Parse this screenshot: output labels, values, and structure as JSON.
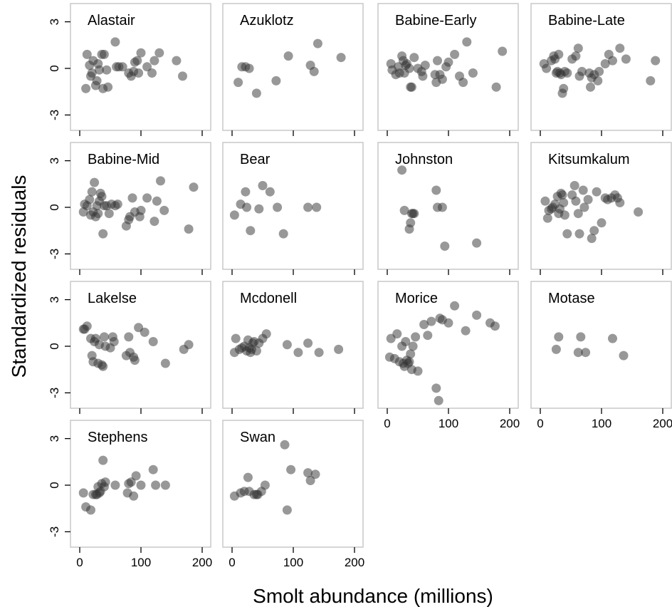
{
  "chart_data": {
    "type": "scatter",
    "xlabel": "Smolt abundance (millions)",
    "ylabel": "Standardized residuals",
    "xlim": [
      0,
      200
    ],
    "ylim": [
      -3.9,
      3.9
    ],
    "xticks": [
      0,
      100,
      200
    ],
    "yticks": [
      -3,
      0,
      3
    ],
    "grid": false,
    "panels": [
      {
        "name": "Alastair",
        "x": [
          10,
          12,
          16,
          18,
          20,
          22,
          26,
          28,
          30,
          32,
          36,
          38,
          40,
          44,
          46,
          58,
          60,
          64,
          70,
          80,
          84,
          88,
          90,
          94,
          96,
          100,
          110,
          118,
          122,
          130,
          158,
          168
        ],
        "y": [
          -1.3,
          0.9,
          0.2,
          -0.5,
          -0.3,
          0.5,
          -1.1,
          -0.8,
          0.3,
          -0.1,
          0.9,
          -1.3,
          0.9,
          -0.1,
          -1.2,
          1.7,
          0.1,
          0.1,
          0.1,
          -0.3,
          -0.5,
          -0.2,
          0.4,
          0.5,
          -0.3,
          1.0,
          0.1,
          -0.3,
          0.5,
          1.0,
          0.5,
          -0.5
        ]
      },
      {
        "name": "Azuklotz",
        "x": [
          10,
          16,
          22,
          28,
          40,
          72,
          92,
          128,
          134,
          140,
          178
        ],
        "y": [
          -0.9,
          0.1,
          0.1,
          0.0,
          -1.6,
          -0.8,
          0.8,
          0.2,
          -0.2,
          1.6,
          0.7
        ]
      },
      {
        "name": "Babine-Early",
        "x": [
          6,
          8,
          14,
          18,
          20,
          24,
          26,
          28,
          30,
          32,
          36,
          38,
          40,
          44,
          50,
          56,
          58,
          62,
          78,
          80,
          82,
          86,
          90,
          96,
          100,
          110,
          118,
          124,
          130,
          140,
          178,
          188
        ],
        "y": [
          0.3,
          -0.1,
          -0.4,
          0.1,
          -0.3,
          0.8,
          0.5,
          -0.3,
          0.2,
          0.3,
          0.0,
          -1.2,
          -1.2,
          0.7,
          0.0,
          -0.2,
          -0.5,
          0.2,
          -0.4,
          -0.9,
          0.5,
          -0.4,
          -0.7,
          0.1,
          0.4,
          0.9,
          -0.5,
          -0.9,
          1.7,
          -0.3,
          -1.2,
          1.1
        ]
      },
      {
        "name": "Babine-Late",
        "x": [
          6,
          10,
          18,
          22,
          24,
          26,
          28,
          30,
          32,
          34,
          36,
          38,
          40,
          44,
          52,
          58,
          62,
          64,
          68,
          80,
          82,
          84,
          88,
          94,
          96,
          106,
          112,
          118,
          130,
          140,
          180,
          188
        ],
        "y": [
          0.3,
          0.0,
          0.5,
          0.8,
          0.6,
          -0.3,
          -0.2,
          0.9,
          -0.3,
          -0.4,
          -1.6,
          -1.3,
          -0.2,
          -0.3,
          0.6,
          0.8,
          1.3,
          -0.5,
          -0.2,
          -0.3,
          -1.2,
          -0.6,
          -0.4,
          -0.8,
          -0.2,
          0.3,
          0.9,
          0.5,
          1.3,
          0.6,
          -0.8,
          0.5
        ]
      },
      {
        "name": "Babine-Mid",
        "x": [
          6,
          8,
          12,
          16,
          18,
          20,
          22,
          24,
          26,
          28,
          30,
          32,
          34,
          36,
          38,
          40,
          44,
          48,
          52,
          58,
          62,
          76,
          80,
          82,
          86,
          90,
          98,
          100,
          110,
          122,
          126,
          132,
          138,
          178,
          186
        ],
        "y": [
          -0.3,
          0.2,
          0.1,
          0.5,
          -0.5,
          1.0,
          -0.3,
          1.6,
          -0.6,
          0.1,
          -0.4,
          0.4,
          0.9,
          0.7,
          -1.7,
          0.1,
          0.1,
          -0.4,
          0.2,
          0.1,
          0.2,
          -1.2,
          -0.8,
          -0.6,
          0.6,
          -0.3,
          -0.6,
          -0.2,
          0.6,
          -0.9,
          0.4,
          1.7,
          -0.2,
          -1.4,
          1.3
        ]
      },
      {
        "name": "Bear",
        "x": [
          4,
          14,
          22,
          24,
          30,
          44,
          50,
          62,
          74,
          84,
          124,
          138
        ],
        "y": [
          -0.5,
          0.2,
          1.0,
          0.0,
          -1.5,
          -0.1,
          1.4,
          1.0,
          0.0,
          -1.7,
          0.0,
          0.0
        ]
      },
      {
        "name": "Johnston",
        "x": [
          24,
          28,
          36,
          38,
          40,
          42,
          44,
          80,
          82,
          90,
          94,
          146
        ],
        "y": [
          2.4,
          -0.2,
          -1.4,
          -1.0,
          -0.4,
          -0.4,
          -0.4,
          1.1,
          0.0,
          0.0,
          -2.5,
          -2.3
        ]
      },
      {
        "name": "Kitsumkalum",
        "x": [
          8,
          12,
          14,
          18,
          20,
          24,
          28,
          30,
          32,
          34,
          36,
          38,
          40,
          44,
          52,
          56,
          58,
          62,
          64,
          70,
          72,
          78,
          84,
          88,
          92,
          100,
          106,
          110,
          116,
          122,
          126,
          130,
          160
        ],
        "y": [
          0.4,
          -0.7,
          -0.2,
          -0.1,
          0.0,
          0.2,
          0.7,
          -0.4,
          -0.1,
          0.9,
          0.8,
          0.3,
          -0.5,
          -1.7,
          0.8,
          1.4,
          0.4,
          -0.4,
          -1.7,
          1.1,
          0.0,
          0.5,
          -2.0,
          -1.5,
          1.0,
          -1.0,
          0.6,
          0.5,
          0.6,
          0.8,
          0.6,
          0.3,
          -0.3
        ]
      },
      {
        "name": "Lakelse",
        "x": [
          6,
          8,
          12,
          18,
          20,
          22,
          24,
          26,
          30,
          32,
          36,
          38,
          40,
          42,
          50,
          54,
          56,
          76,
          80,
          82,
          88,
          90,
          96,
          106,
          120,
          140,
          170,
          178
        ],
        "y": [
          1.1,
          1.1,
          1.3,
          0.5,
          -0.6,
          -1.0,
          0.3,
          0.5,
          -1.1,
          0.1,
          -1.2,
          -1.3,
          0.6,
          0.0,
          -0.1,
          0.6,
          0.3,
          -0.6,
          0.6,
          -0.4,
          -0.7,
          -0.9,
          1.2,
          0.9,
          0.3,
          -1.1,
          -0.2,
          0.1
        ]
      },
      {
        "name": "Mcdonell",
        "x": [
          4,
          6,
          12,
          16,
          20,
          24,
          26,
          28,
          30,
          32,
          34,
          36,
          40,
          44,
          50,
          56,
          90,
          108,
          124,
          142,
          174
        ],
        "y": [
          -0.4,
          0.5,
          -0.2,
          -0.1,
          0.0,
          -0.3,
          0.4,
          -0.1,
          -0.4,
          -0.2,
          0.2,
          0.3,
          -0.3,
          0.2,
          0.5,
          0.8,
          0.1,
          -0.4,
          0.2,
          -0.4,
          -0.2
        ]
      },
      {
        "name": "Morice",
        "x": [
          4,
          6,
          12,
          16,
          20,
          24,
          26,
          28,
          30,
          32,
          34,
          36,
          38,
          40,
          42,
          46,
          50,
          60,
          66,
          72,
          80,
          84,
          86,
          90,
          100,
          110,
          128,
          146,
          168,
          176
        ],
        "y": [
          -0.7,
          0.5,
          -0.8,
          0.8,
          -1.0,
          0.0,
          -1.1,
          -1.3,
          0.3,
          -0.9,
          -1.1,
          -1.0,
          -0.5,
          -1.5,
          0.0,
          0.6,
          -1.6,
          1.4,
          0.7,
          1.6,
          -2.7,
          -3.5,
          1.8,
          1.7,
          1.5,
          2.6,
          1.0,
          2.0,
          1.5,
          1.3
        ]
      },
      {
        "name": "Motase",
        "x": [
          26,
          30,
          62,
          66,
          74,
          118,
          136
        ],
        "y": [
          -0.2,
          0.6,
          -0.4,
          0.6,
          -0.4,
          0.5,
          -0.6
        ]
      },
      {
        "name": "Stephens",
        "x": [
          6,
          10,
          18,
          22,
          26,
          28,
          30,
          32,
          34,
          36,
          38,
          40,
          42,
          58,
          78,
          80,
          84,
          88,
          92,
          100,
          120,
          124,
          140
        ],
        "y": [
          -0.5,
          -1.4,
          -1.6,
          -0.6,
          -0.6,
          -0.6,
          -0.1,
          -0.5,
          -0.4,
          0.1,
          1.6,
          -0.1,
          0.2,
          0.0,
          -0.5,
          0.1,
          0.2,
          -0.7,
          0.6,
          0.0,
          1.0,
          0.0,
          0.0
        ]
      },
      {
        "name": "Swan",
        "x": [
          4,
          14,
          20,
          26,
          28,
          36,
          40,
          42,
          48,
          54,
          86,
          90,
          96,
          124,
          128,
          136
        ],
        "y": [
          -0.7,
          -0.5,
          -0.4,
          0.5,
          -0.4,
          -0.6,
          -0.6,
          -0.6,
          -0.4,
          0.0,
          2.6,
          -1.6,
          1.0,
          0.8,
          0.3,
          0.7
        ]
      }
    ]
  }
}
